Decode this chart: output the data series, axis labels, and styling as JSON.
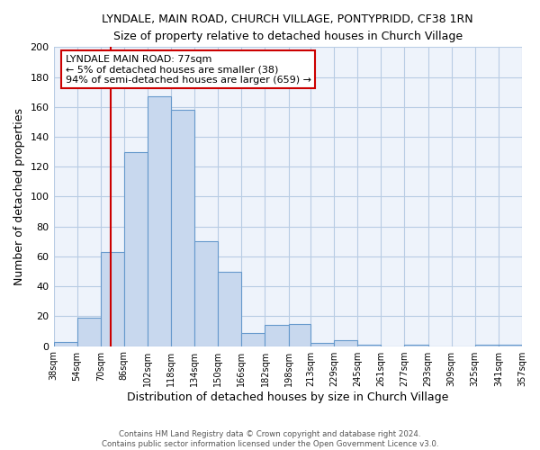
{
  "title": "LYNDALE, MAIN ROAD, CHURCH VILLAGE, PONTYPRIDD, CF38 1RN",
  "subtitle": "Size of property relative to detached houses in Church Village",
  "xlabel": "Distribution of detached houses by size in Church Village",
  "ylabel": "Number of detached properties",
  "bar_color": "#c8d8ee",
  "bar_edge_color": "#6699cc",
  "grid_color": "#b8cce4",
  "bg_color": "#ffffff",
  "plot_bg_color": "#eef3fb",
  "vline_x": 77,
  "vline_color": "#cc0000",
  "annotation_title": "LYNDALE MAIN ROAD: 77sqm",
  "annotation_line2": "← 5% of detached houses are smaller (38)",
  "annotation_line3": "94% of semi-detached houses are larger (659) →",
  "annotation_box_color": "#cc0000",
  "bin_edges": [
    38,
    54,
    70,
    86,
    102,
    118,
    134,
    150,
    166,
    182,
    198,
    213,
    229,
    245,
    261,
    277,
    293,
    309,
    325,
    341,
    357
  ],
  "bin_counts": [
    3,
    19,
    63,
    130,
    167,
    158,
    70,
    50,
    9,
    14,
    15,
    2,
    4,
    1,
    0,
    1,
    0,
    0,
    1,
    1
  ],
  "tick_labels": [
    "38sqm",
    "54sqm",
    "70sqm",
    "86sqm",
    "102sqm",
    "118sqm",
    "134sqm",
    "150sqm",
    "166sqm",
    "182sqm",
    "198sqm",
    "213sqm",
    "229sqm",
    "245sqm",
    "261sqm",
    "277sqm",
    "293sqm",
    "309sqm",
    "325sqm",
    "341sqm",
    "357sqm"
  ],
  "ylim": [
    0,
    200
  ],
  "yticks": [
    0,
    20,
    40,
    60,
    80,
    100,
    120,
    140,
    160,
    180,
    200
  ],
  "footer_line1": "Contains HM Land Registry data © Crown copyright and database right 2024.",
  "footer_line2": "Contains public sector information licensed under the Open Government Licence v3.0."
}
